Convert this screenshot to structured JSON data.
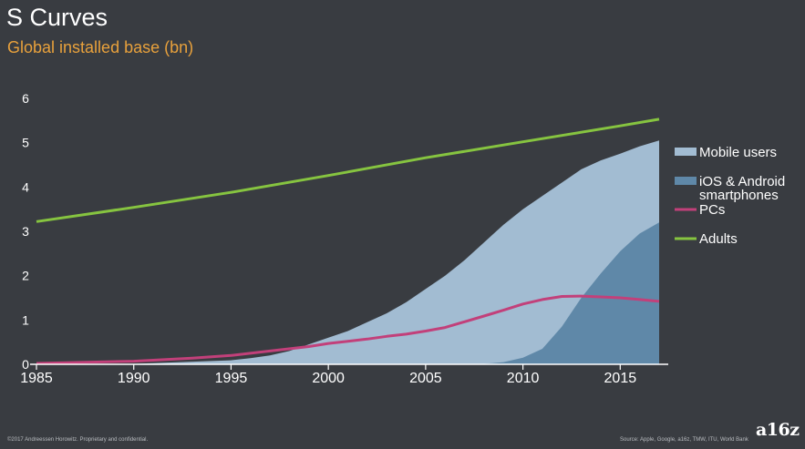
{
  "title": "S Curves",
  "subtitle": "Global installed base (bn)",
  "footer": {
    "copyright": "©2017 Andreessen Horowitz. Proprietary and confidential.",
    "source": "Source: Apple, Google, a16z, TMW, ITU, World Bank"
  },
  "logo": "a16z",
  "colors": {
    "background": "#393c41",
    "mobile_users": "#a2bcd2",
    "smartphones": "#5f88a8",
    "pcs": "#c2407a",
    "adults": "#86c440",
    "subtitle": "#e8a13c",
    "axis": "#ffffff"
  },
  "chart_data": {
    "type": "area",
    "title": "S Curves",
    "subtitle": "Global installed base (bn)",
    "xlabel": "",
    "ylabel": "",
    "xlim": [
      1985,
      2017
    ],
    "ylim": [
      0,
      6
    ],
    "xticks": [
      1985,
      1990,
      1995,
      2000,
      2005,
      2010,
      2015
    ],
    "yticks": [
      0,
      1,
      2,
      3,
      4,
      5,
      6
    ],
    "grid": false,
    "legend_position": "right",
    "series": [
      {
        "name": "Mobile users",
        "type": "area",
        "color": "#a2bcd2",
        "x": [
          1985,
          1990,
          1995,
          1996,
          1997,
          1998,
          1999,
          2000,
          2001,
          2002,
          2003,
          2004,
          2005,
          2006,
          2007,
          2008,
          2009,
          2010,
          2011,
          2012,
          2013,
          2014,
          2015,
          2016,
          2017
        ],
        "y": [
          0,
          0.01,
          0.09,
          0.14,
          0.2,
          0.3,
          0.45,
          0.6,
          0.75,
          0.95,
          1.15,
          1.4,
          1.7,
          2.0,
          2.35,
          2.75,
          3.15,
          3.5,
          3.8,
          4.1,
          4.4,
          4.6,
          4.75,
          4.92,
          5.05
        ]
      },
      {
        "name": "iOS & Android smartphones",
        "type": "area",
        "color": "#5f88a8",
        "x": [
          1985,
          2007,
          2008,
          2009,
          2010,
          2011,
          2012,
          2013,
          2014,
          2015,
          2016,
          2017
        ],
        "y": [
          0,
          0,
          0.01,
          0.05,
          0.15,
          0.35,
          0.85,
          1.5,
          2.05,
          2.55,
          2.95,
          3.2
        ]
      },
      {
        "name": "PCs",
        "type": "line",
        "color": "#c2407a",
        "x": [
          1985,
          1990,
          1993,
          1995,
          1997,
          1999,
          2000,
          2001,
          2002,
          2003,
          2004,
          2005,
          2006,
          2007,
          2008,
          2009,
          2010,
          2011,
          2012,
          2013,
          2014,
          2015,
          2016,
          2017
        ],
        "y": [
          0.02,
          0.07,
          0.14,
          0.2,
          0.3,
          0.4,
          0.47,
          0.52,
          0.57,
          0.63,
          0.68,
          0.75,
          0.83,
          0.96,
          1.09,
          1.22,
          1.36,
          1.46,
          1.53,
          1.54,
          1.52,
          1.5,
          1.46,
          1.42
        ]
      },
      {
        "name": "Adults",
        "type": "line",
        "color": "#86c440",
        "x": [
          1985,
          1990,
          1995,
          2000,
          2005,
          2010,
          2015,
          2017
        ],
        "y": [
          3.22,
          3.54,
          3.88,
          4.26,
          4.66,
          5.02,
          5.38,
          5.53
        ]
      }
    ]
  }
}
